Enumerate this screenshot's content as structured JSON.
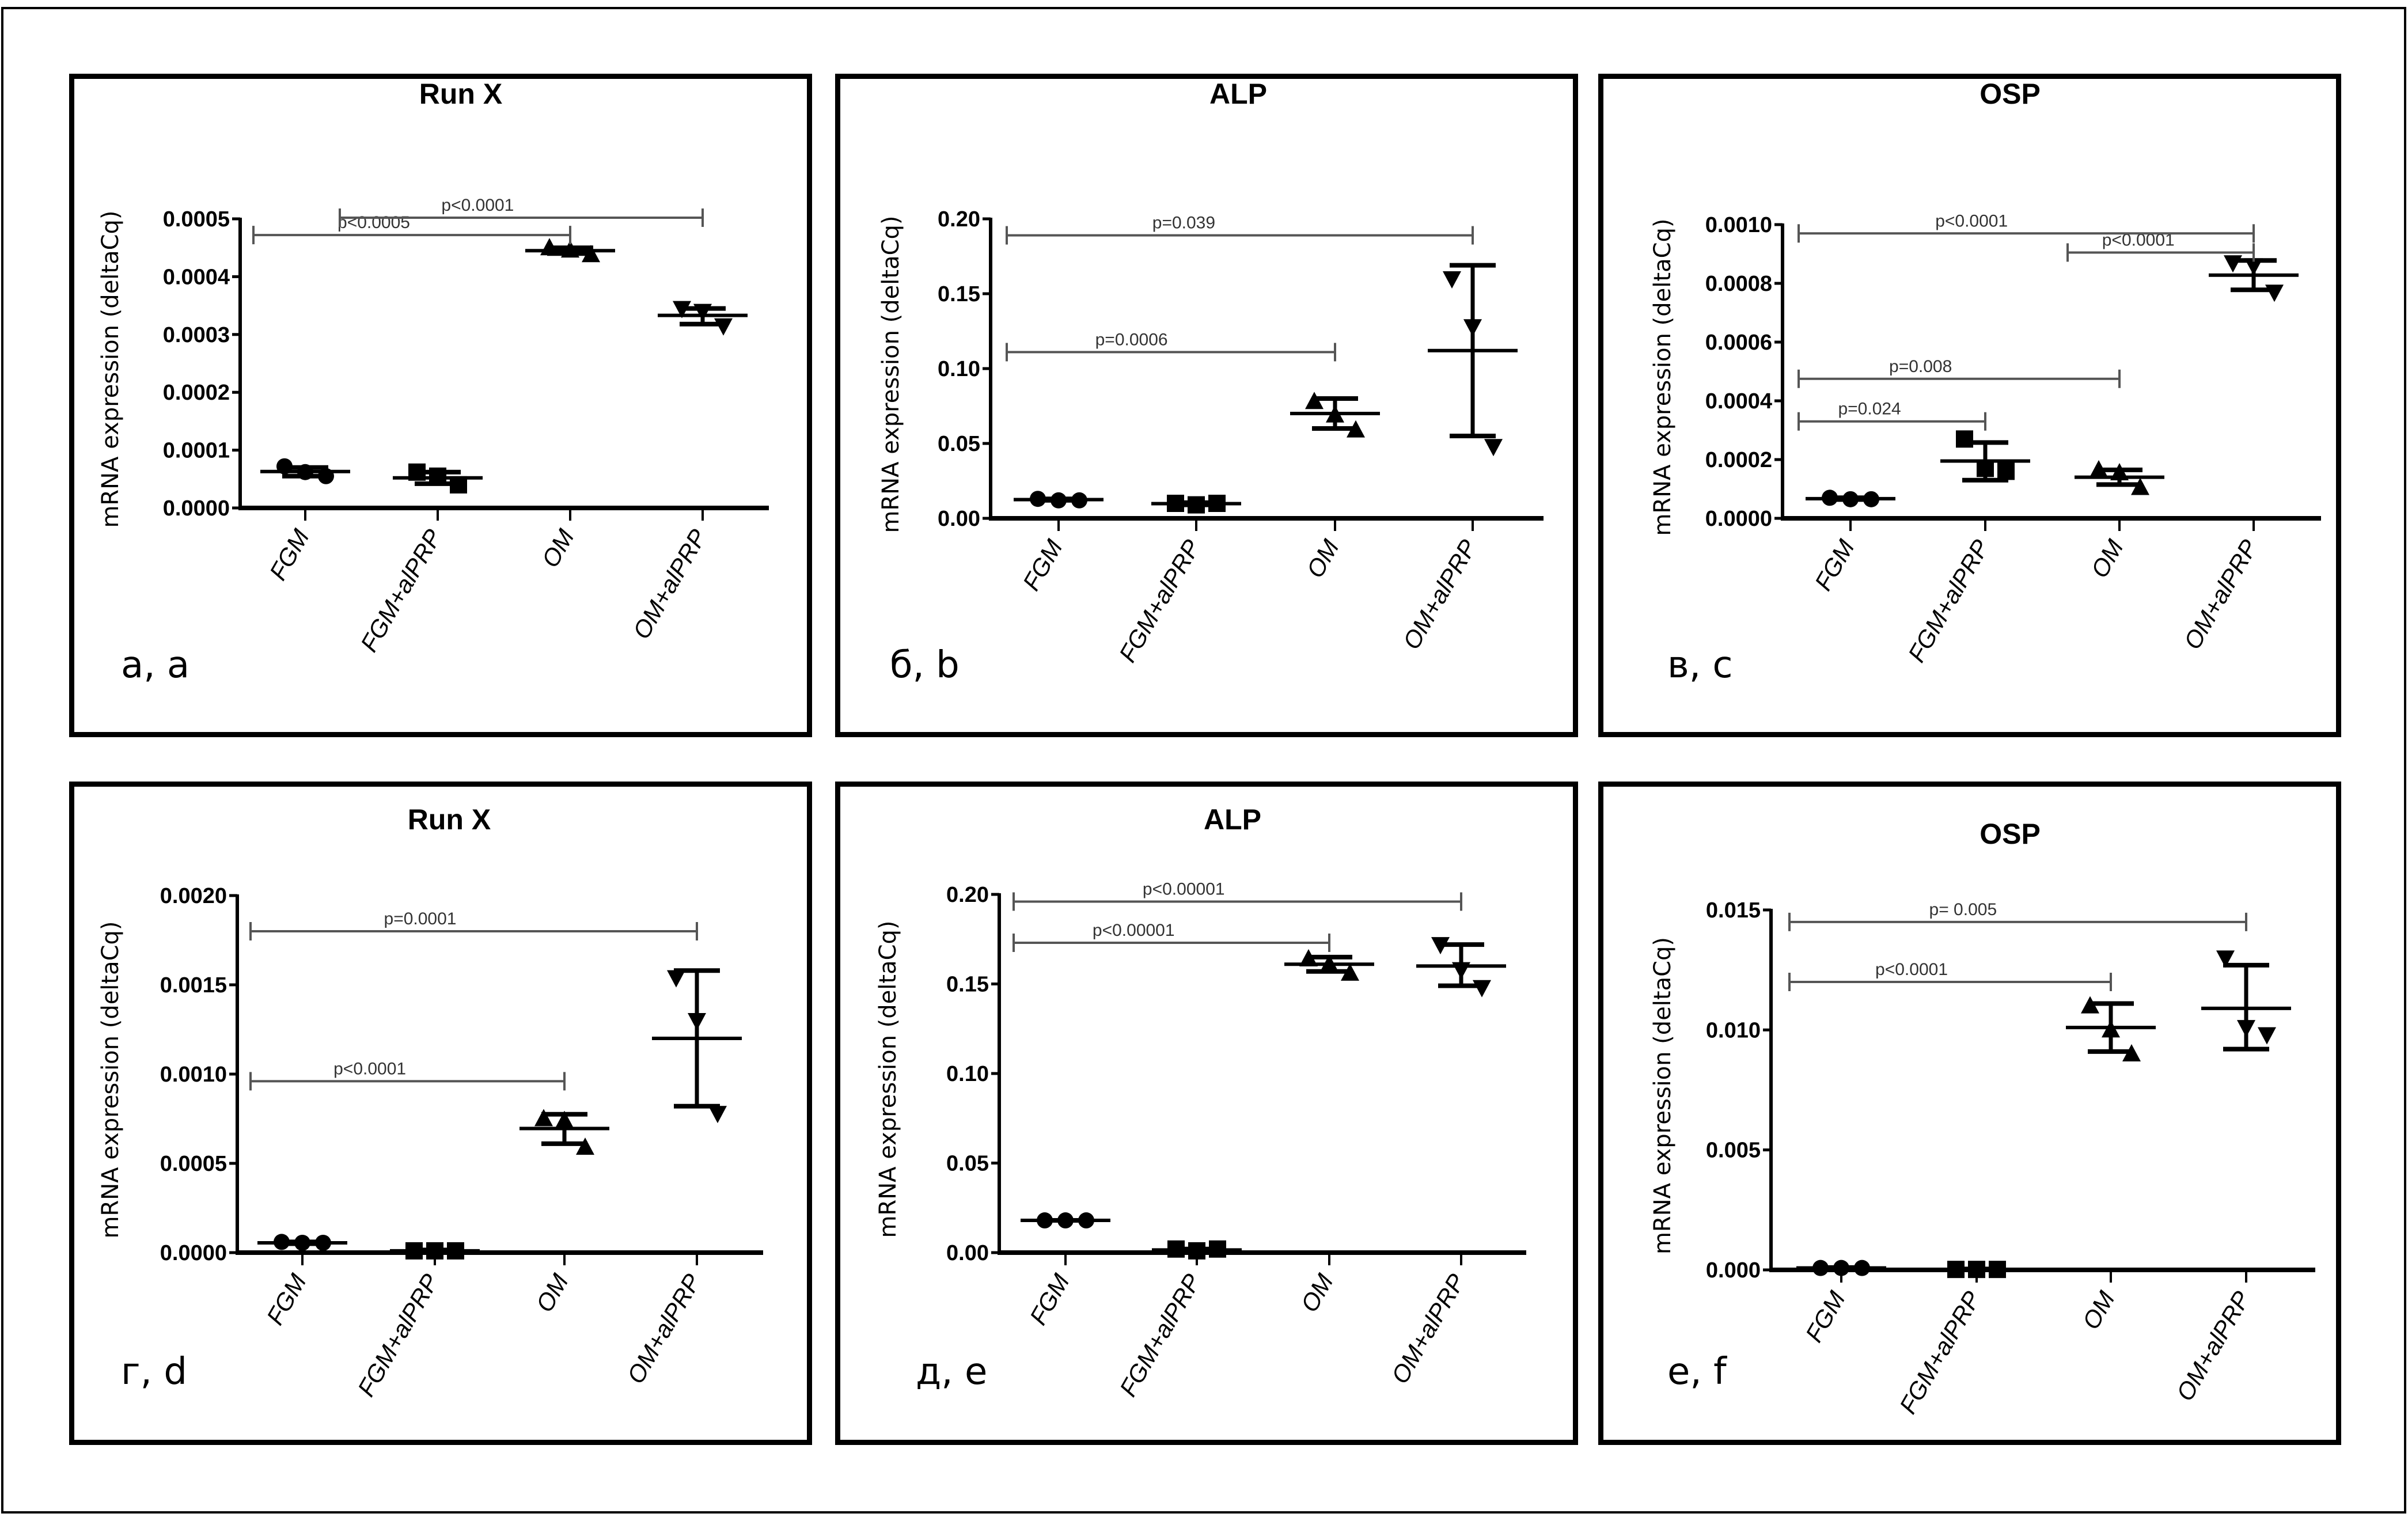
{
  "figure": {
    "colors": {
      "ink": "#000000",
      "bracket": "#444444",
      "background": "#ffffff"
    }
  },
  "chart_data": [
    {
      "id": "a",
      "panel_label": "а, a",
      "type": "scatter",
      "title": "Run X",
      "ylabel": "mRNA expression (deltaCq)",
      "xlabel": "",
      "categories": [
        "FGM",
        "FGM+alPRP",
        "OM",
        "OM+alPRP"
      ],
      "ylim": [
        0,
        0.0005
      ],
      "yticks": [
        0.0,
        0.0001,
        0.0002,
        0.0003,
        0.0004,
        0.0005
      ],
      "ytick_labels": [
        "0.0000",
        "0.0001",
        "0.0002",
        "0.0003",
        "0.0004",
        "0.0005"
      ],
      "markers": [
        "circle",
        "square",
        "triangle-up",
        "triangle-down"
      ],
      "series": [
        {
          "name": "FGM",
          "points": [
            7.2e-05,
            6.2e-05,
            5.5e-05
          ],
          "mean": 6.3e-05,
          "err_low": 5.5e-05,
          "err_high": 7e-05
        },
        {
          "name": "FGM+alPRP",
          "points": [
            6.2e-05,
            5.5e-05,
            4e-05
          ],
          "mean": 5.2e-05,
          "err_low": 4.2e-05,
          "err_high": 6.2e-05
        },
        {
          "name": "OM",
          "points": [
            0.00045,
            0.000446,
            0.000438
          ],
          "mean": 0.000445,
          "err_low": 0.00044,
          "err_high": 0.00045
        },
        {
          "name": "OM+alPRP",
          "points": [
            0.000345,
            0.00034,
            0.000315
          ],
          "mean": 0.000333,
          "err_low": 0.000318,
          "err_high": 0.000345
        }
      ],
      "brackets": [
        {
          "from": 0,
          "to": 2,
          "y": 0.000472,
          "label": "p<0.0005"
        },
        {
          "from": 0,
          "to": 3,
          "y": 0.000502,
          "label": "p<0.0001",
          "from_offset": 0.35
        }
      ]
    },
    {
      "id": "b",
      "panel_label": "б, b",
      "type": "scatter",
      "title": "ALP",
      "ylabel": "mRNA expression (deltaCq)",
      "xlabel": "",
      "categories": [
        "FGM",
        "FGM+alPRP",
        "OM",
        "OM+alPRP"
      ],
      "ylim": [
        0,
        0.2
      ],
      "yticks": [
        0.0,
        0.05,
        0.1,
        0.15,
        0.2
      ],
      "ytick_labels": [
        "0.00",
        "0.05",
        "0.10",
        "0.15",
        "0.20"
      ],
      "markers": [
        "circle",
        "square",
        "triangle-up",
        "triangle-down"
      ],
      "series": [
        {
          "name": "FGM",
          "points": [
            0.013,
            0.012,
            0.012
          ],
          "mean": 0.0125,
          "err_low": 0.012,
          "err_high": 0.013
        },
        {
          "name": "FGM+alPRP",
          "points": [
            0.01,
            0.009,
            0.01
          ],
          "mean": 0.0098,
          "err_low": 0.009,
          "err_high": 0.0105
        },
        {
          "name": "OM",
          "points": [
            0.078,
            0.069,
            0.059
          ],
          "mean": 0.07,
          "err_low": 0.06,
          "err_high": 0.08
        },
        {
          "name": "OM+alPRP",
          "points": [
            0.16,
            0.128,
            0.048
          ],
          "mean": 0.112,
          "err_low": 0.055,
          "err_high": 0.169
        }
      ],
      "brackets": [
        {
          "from": 0,
          "to": 2,
          "y": 0.111,
          "label": "p=0.0006"
        },
        {
          "from": 0,
          "to": 3,
          "y": 0.189,
          "label": "p=0.039"
        }
      ]
    },
    {
      "id": "c",
      "panel_label": "в, c",
      "type": "scatter",
      "title": "OSP",
      "ylabel": "mRNA expression (deltaCq)",
      "xlabel": "",
      "categories": [
        "FGM",
        "FGM+alPRP",
        "OM",
        "OM+alPRP"
      ],
      "ylim": [
        0,
        0.001
      ],
      "yticks": [
        0.0,
        0.0002,
        0.0004,
        0.0006,
        0.0008,
        0.001
      ],
      "ytick_labels": [
        "0.0000",
        "0.0002",
        "0.0004",
        "0.0006",
        "0.0008",
        "0.0010"
      ],
      "markers": [
        "circle",
        "square",
        "triangle-up",
        "triangle-down"
      ],
      "series": [
        {
          "name": "FGM",
          "points": [
            7e-05,
            6.5e-05,
            6.5e-05
          ],
          "mean": 6.7e-05,
          "err_low": 6.4e-05,
          "err_high": 7e-05
        },
        {
          "name": "FGM+alPRP",
          "points": [
            0.00027,
            0.00017,
            0.00016
          ],
          "mean": 0.000195,
          "err_low": 0.00013,
          "err_high": 0.000258
        },
        {
          "name": "OM",
          "points": [
            0.000165,
            0.000155,
            0.000105
          ],
          "mean": 0.00014,
          "err_low": 0.000115,
          "err_high": 0.000165
        },
        {
          "name": "OM+alPRP",
          "points": [
            0.00087,
            0.00086,
            0.00077
          ],
          "mean": 0.000828,
          "err_low": 0.000778,
          "err_high": 0.000878
        }
      ],
      "brackets": [
        {
          "from": 0,
          "to": 1,
          "y": 0.00033,
          "label": "p=0.024"
        },
        {
          "from": 0,
          "to": 2,
          "y": 0.000475,
          "label": "p=0.008"
        },
        {
          "from": 2,
          "to": 3,
          "y": 0.000905,
          "label": "p<0.0001"
        },
        {
          "from": 0,
          "to": 3,
          "y": 0.00097,
          "label": "p<0.0001"
        }
      ]
    },
    {
      "id": "d",
      "panel_label": "г, d",
      "type": "scatter",
      "title": "Run X",
      "ylabel": "mRNA expression (deltaCq)",
      "xlabel": "",
      "categories": [
        "FGM",
        "FGM+alPRP",
        "OM",
        "OM+alPRP"
      ],
      "ylim": [
        0,
        0.002
      ],
      "yticks": [
        0.0,
        0.0005,
        0.001,
        0.0015,
        0.002
      ],
      "ytick_labels": [
        "0.0000",
        "0.0005",
        "0.0010",
        "0.0015",
        "0.0020"
      ],
      "markers": [
        "circle",
        "square",
        "triangle-up",
        "triangle-down"
      ],
      "series": [
        {
          "name": "FGM",
          "points": [
            6e-05,
            5.5e-05,
            5.5e-05
          ],
          "mean": 5.5e-05,
          "err_low": 5e-05,
          "err_high": 6e-05
        },
        {
          "name": "FGM+alPRP",
          "points": [
            1e-05,
            1e-05,
            1e-05
          ],
          "mean": 1e-05,
          "err_low": 5e-06,
          "err_high": 1.5e-05
        },
        {
          "name": "OM",
          "points": [
            0.00075,
            0.00074,
            0.00059
          ],
          "mean": 0.000695,
          "err_low": 0.00061,
          "err_high": 0.000775
        },
        {
          "name": "OM+alPRP",
          "points": [
            0.00154,
            0.0013,
            0.00078
          ],
          "mean": 0.0012,
          "err_low": 0.00082,
          "err_high": 0.00158
        }
      ],
      "brackets": [
        {
          "from": 0,
          "to": 2,
          "y": 0.00096,
          "label": "p<0.0001"
        },
        {
          "from": 0,
          "to": 3,
          "y": 0.0018,
          "label": "p=0.0001"
        }
      ]
    },
    {
      "id": "e",
      "panel_label": "д, e",
      "type": "scatter",
      "title": "ALP",
      "ylabel": "mRNA expression (deltaCq)",
      "xlabel": "",
      "categories": [
        "FGM",
        "FGM+alPRP",
        "OM",
        "OM+alPRP"
      ],
      "ylim": [
        0,
        0.2
      ],
      "yticks": [
        0.0,
        0.05,
        0.1,
        0.15,
        0.2
      ],
      "ytick_labels": [
        "0.00",
        "0.05",
        "0.10",
        "0.15",
        "0.20"
      ],
      "markers": [
        "circle",
        "square",
        "triangle-up",
        "triangle-down"
      ],
      "series": [
        {
          "name": "FGM",
          "points": [
            0.018,
            0.018,
            0.018
          ],
          "mean": 0.018,
          "err_low": 0.018,
          "err_high": 0.018
        },
        {
          "name": "FGM+alPRP",
          "points": [
            0.002,
            0.001,
            0.002
          ],
          "mean": 0.0015,
          "err_low": 0.001,
          "err_high": 0.002
        },
        {
          "name": "OM",
          "points": [
            0.164,
            0.161,
            0.156
          ],
          "mean": 0.161,
          "err_low": 0.157,
          "err_high": 0.165
        },
        {
          "name": "OM+alPRP",
          "points": [
            0.172,
            0.158,
            0.148
          ],
          "mean": 0.16,
          "err_low": 0.149,
          "err_high": 0.172
        }
      ],
      "brackets": [
        {
          "from": 0,
          "to": 2,
          "y": 0.173,
          "label": "p<0.00001"
        },
        {
          "from": 0,
          "to": 3,
          "y": 0.196,
          "label": "p<0.00001"
        }
      ]
    },
    {
      "id": "f",
      "panel_label": "е, f",
      "type": "scatter",
      "title": "OSP",
      "ylabel": "mRNA expression (deltaCq)",
      "xlabel": "",
      "categories": [
        "FGM",
        "FGM+alPRP",
        "OM",
        "OM+alPRP"
      ],
      "ylim": [
        0,
        0.015
      ],
      "yticks": [
        0.0,
        0.005,
        0.01,
        0.015
      ],
      "ytick_labels": [
        "0.000",
        "0.005",
        "0.010",
        "0.015"
      ],
      "markers": [
        "circle",
        "square",
        "triangle-up",
        "triangle-down"
      ],
      "series": [
        {
          "name": "FGM",
          "points": [
            8e-05,
            8e-05,
            8e-05
          ],
          "mean": 8e-05,
          "err_low": 6e-05,
          "err_high": 0.0001
        },
        {
          "name": "FGM+alPRP",
          "points": [
            2e-05,
            2e-05,
            2e-05
          ],
          "mean": 2e-05,
          "err_low": 0.0,
          "err_high": 4e-05
        },
        {
          "name": "OM",
          "points": [
            0.011,
            0.01,
            0.009
          ],
          "mean": 0.0101,
          "err_low": 0.0091,
          "err_high": 0.0111
        },
        {
          "name": "OM+alPRP",
          "points": [
            0.013,
            0.0101,
            0.0098
          ],
          "mean": 0.0109,
          "err_low": 0.0092,
          "err_high": 0.0127
        }
      ],
      "brackets": [
        {
          "from": 0,
          "to": 2,
          "y": 0.012,
          "label": "p<0.0001"
        },
        {
          "from": 0,
          "to": 3,
          "y": 0.0145,
          "label": "p= 0.005"
        }
      ]
    }
  ]
}
